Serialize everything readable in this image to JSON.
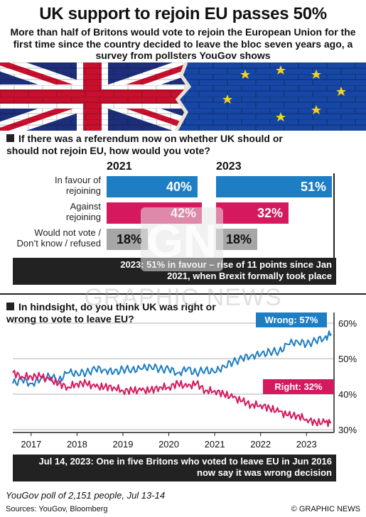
{
  "title": "UK support to rejoin EU passes 50%",
  "subtitle": "More than half of Britons would vote to rejoin the European Union for the first time since the country decided to leave the bloc seven years ago, a survey from pollsters YouGov shows",
  "colors": {
    "blue": "#1d7ec3",
    "pink": "#d6195f",
    "grey": "#a6a6a6",
    "dark": "#222222"
  },
  "watermark": {
    "logo": "GN",
    "text": "GRAPHIC NEWS"
  },
  "chart_data": [
    {
      "type": "bar",
      "title": "If there was a referendum now on whether UK should or should not rejoin EU, how would you vote?",
      "categories": [
        "In favour of rejoining",
        "Against rejoining",
        "Would not vote / Don’t know / refused"
      ],
      "category_lines": [
        [
          "In favour of",
          "rejoining"
        ],
        [
          "Against",
          "rejoining"
        ],
        [
          "Would not vote /",
          "Don’t know / refused"
        ]
      ],
      "series": [
        {
          "name": "2021",
          "values": [
            40,
            42,
            18
          ],
          "labels": [
            "40%",
            "42%",
            "18%"
          ]
        },
        {
          "name": "2023",
          "values": [
            51,
            32,
            18
          ],
          "labels": [
            "51%",
            "32%",
            "18%"
          ]
        }
      ],
      "annotation": "2023: 51% in favour – rise of 11 points since Jan 2021, when Brexit formally took place"
    },
    {
      "type": "line",
      "title": "In hindsight, do you think UK was right or wrong to vote to leave EU?",
      "x_ticks": [
        "2017",
        "2018",
        "2019",
        "2020",
        "2021",
        "2022",
        "2023"
      ],
      "y_ticks": [
        "30%",
        "40%",
        "50%",
        "60%"
      ],
      "ylim": [
        30,
        60
      ],
      "xlim": [
        2016.6,
        2023.6
      ],
      "series": [
        {
          "name": "Wrong",
          "label": "Wrong: 57%",
          "color": "#1d7ec3",
          "x": [
            2016.6,
            2016.8,
            2017.0,
            2017.2,
            2017.4,
            2017.6,
            2017.8,
            2018.0,
            2018.2,
            2018.4,
            2018.6,
            2018.8,
            2019.0,
            2019.2,
            2019.4,
            2019.6,
            2019.8,
            2020.0,
            2020.2,
            2020.4,
            2020.6,
            2020.8,
            2021.0,
            2021.2,
            2021.4,
            2021.6,
            2021.8,
            2022.0,
            2022.2,
            2022.4,
            2022.6,
            2022.8,
            2023.0,
            2023.2,
            2023.4,
            2023.54
          ],
          "values": [
            43,
            44,
            43,
            44,
            45,
            44,
            46,
            46,
            46,
            47,
            47,
            46,
            47,
            47,
            47,
            48,
            47,
            47,
            46,
            47,
            46,
            47,
            46,
            48,
            49,
            50,
            51,
            51,
            52,
            52,
            54,
            55,
            54,
            55,
            56,
            57
          ]
        },
        {
          "name": "Right",
          "label": "Right: 32%",
          "color": "#d6195f",
          "x": [
            2016.6,
            2016.8,
            2017.0,
            2017.2,
            2017.4,
            2017.6,
            2017.8,
            2018.0,
            2018.2,
            2018.4,
            2018.6,
            2018.8,
            2019.0,
            2019.2,
            2019.4,
            2019.6,
            2019.8,
            2020.0,
            2020.2,
            2020.4,
            2020.6,
            2020.8,
            2021.0,
            2021.2,
            2021.4,
            2021.6,
            2021.8,
            2022.0,
            2022.2,
            2022.4,
            2022.6,
            2022.8,
            2023.0,
            2023.2,
            2023.4,
            2023.54
          ],
          "values": [
            46,
            45,
            45,
            45,
            44,
            43,
            42,
            43,
            43,
            42,
            42,
            42,
            41,
            41,
            41,
            41,
            42,
            42,
            43,
            42,
            43,
            41,
            41,
            40,
            39,
            38,
            37,
            37,
            36,
            35,
            34,
            34,
            33,
            32,
            32,
            32
          ]
        }
      ],
      "annotation": "Jul 14, 2023: One in five Britons who voted to leave EU in Jun 2016 now say it was wrong decision"
    }
  ],
  "footer": {
    "poll": "YouGov poll of 2,151 people, Jul 13-14",
    "sources": "Sources: YouGov, Bloomberg",
    "copyright": "© GRAPHIC NEWS"
  }
}
